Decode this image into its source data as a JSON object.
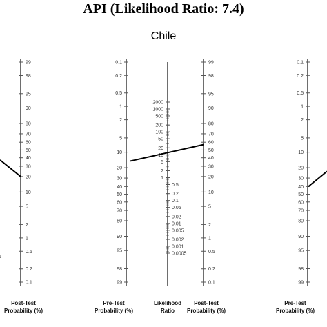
{
  "header": {
    "title": "API (Likelihood Ratio: 7.4)",
    "subtitle": "Chile"
  },
  "chart_data": {
    "type": "nomogram",
    "title": "API (Likelihood Ratio: 7.4)",
    "subtitle": "Chile",
    "axes": [
      {
        "id": "post_left",
        "label_lines": [
          "Post-Test",
          "Probability (%)"
        ],
        "ticks": [
          "99",
          "98",
          "95",
          "90",
          "80",
          "70",
          "60",
          "50",
          "40",
          "30",
          "20",
          "10",
          "5",
          "2",
          "1",
          "0.5",
          "0.2",
          "0.1"
        ],
        "partial_text": "5"
      },
      {
        "id": "pre_center",
        "label_lines": [
          "Pre-Test",
          "Probability (%)"
        ],
        "ticks": [
          "0.1",
          "0.2",
          "0.5",
          "1",
          "2",
          "5",
          "10",
          "20",
          "30",
          "40",
          "50",
          "60",
          "70",
          "80",
          "90",
          "95",
          "98",
          "99"
        ]
      },
      {
        "id": "lr_center",
        "label_lines": [
          "Likelihood",
          "Ratio"
        ],
        "ticks": [
          "2000",
          "1000",
          "500",
          "200",
          "100",
          "50",
          "20",
          "10",
          "5",
          "2",
          "1",
          "0.5",
          "0.2",
          "0.1",
          "0.05",
          "0.02",
          "0.01",
          "0.005",
          "0.002",
          "0.001",
          "0.0005"
        ]
      },
      {
        "id": "post_center",
        "label_lines": [
          "Post-Test",
          "Probability (%)"
        ],
        "ticks": [
          "99",
          "98",
          "95",
          "90",
          "80",
          "70",
          "60",
          "50",
          "40",
          "30",
          "20",
          "10",
          "5",
          "2",
          "1",
          "0.5",
          "0.2",
          "0.1"
        ]
      },
      {
        "id": "pre_right",
        "label_lines": [
          "Pre-Test",
          "Probability (%)"
        ],
        "ticks": [
          "0.1",
          "0.2",
          "0.5",
          "1",
          "2",
          "5",
          "10",
          "20",
          "30",
          "40",
          "50",
          "60",
          "70",
          "80",
          "90",
          "95",
          "98",
          "99"
        ]
      }
    ],
    "lines": [
      {
        "panel": "center",
        "likelihood_ratio": 7.4,
        "pre_test_probability": 15,
        "post_test_probability": 57
      },
      {
        "panel": "left",
        "post_test_probability": 20
      },
      {
        "panel": "right",
        "pre_test_probability": 35
      }
    ]
  }
}
